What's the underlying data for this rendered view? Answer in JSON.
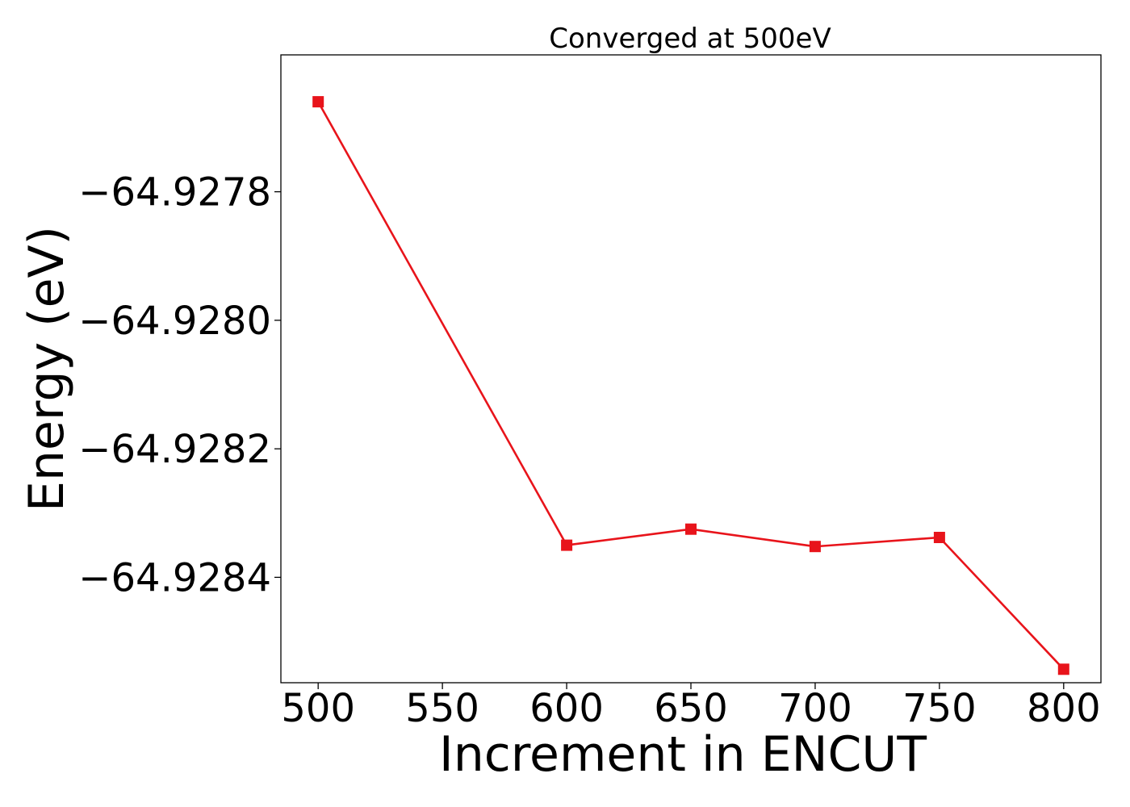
{
  "chart_data": {
    "type": "line",
    "title": "Converged at 500eV",
    "xlabel": "Increment in ENCUT",
    "ylabel": "Energy (eV)",
    "x": [
      500,
      600,
      650,
      700,
      750,
      800
    ],
    "series": [
      {
        "values": [
          -64.92766,
          -64.92835,
          -64.928325,
          -64.928352,
          -64.928338,
          -64.928543
        ],
        "color": "#e8141b",
        "marker": "square"
      }
    ],
    "xlim": [
      485,
      815
    ],
    "ylim": [
      -64.928564,
      -64.927587
    ],
    "xticks": [
      500,
      550,
      600,
      650,
      700,
      750,
      800
    ],
    "xtick_labels": [
      "500",
      "550",
      "600",
      "650",
      "700",
      "750",
      "800"
    ],
    "yticks": [
      -64.9278,
      -64.928,
      -64.9282,
      -64.9284
    ],
    "ytick_labels": [
      "−64.9278",
      "−64.9280",
      "−64.9282",
      "−64.9284"
    ],
    "grid": false,
    "legend": "none"
  }
}
